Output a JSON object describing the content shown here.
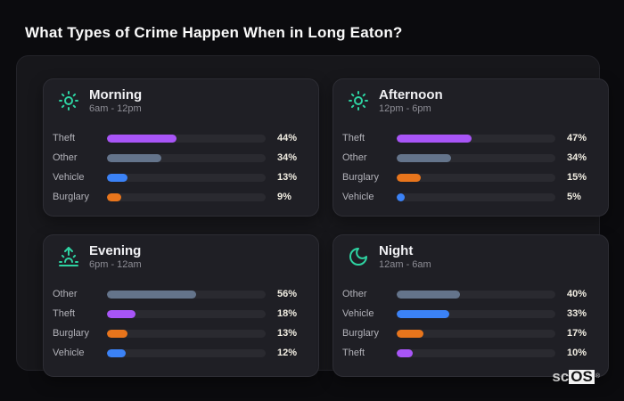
{
  "page": {
    "title": "What Types of Crime Happen When in Long Eaton?"
  },
  "colors": {
    "theft": "#a855f7",
    "other": "#64748b",
    "vehicle": "#3b82f6",
    "burglary": "#e8751c",
    "icon_accent": "#2ed3a2"
  },
  "chart_data": [
    {
      "type": "bar",
      "orientation": "horizontal",
      "title": "Morning",
      "subtitle": "6am - 12pm",
      "icon": "sun-icon",
      "unit": "%",
      "xlim": [
        0,
        100
      ],
      "rows": [
        {
          "label": "Theft",
          "value": 44,
          "display": "44%",
          "color_key": "theft"
        },
        {
          "label": "Other",
          "value": 34,
          "display": "34%",
          "color_key": "other"
        },
        {
          "label": "Vehicle",
          "value": 13,
          "display": "13%",
          "color_key": "vehicle"
        },
        {
          "label": "Burglary",
          "value": 9,
          "display": "9%",
          "color_key": "burglary"
        }
      ]
    },
    {
      "type": "bar",
      "orientation": "horizontal",
      "title": "Afternoon",
      "subtitle": "12pm - 6pm",
      "icon": "sun-icon",
      "unit": "%",
      "xlim": [
        0,
        100
      ],
      "rows": [
        {
          "label": "Theft",
          "value": 47,
          "display": "47%",
          "color_key": "theft"
        },
        {
          "label": "Other",
          "value": 34,
          "display": "34%",
          "color_key": "other"
        },
        {
          "label": "Burglary",
          "value": 15,
          "display": "15%",
          "color_key": "burglary"
        },
        {
          "label": "Vehicle",
          "value": 5,
          "display": "5%",
          "color_key": "vehicle"
        }
      ]
    },
    {
      "type": "bar",
      "orientation": "horizontal",
      "title": "Evening",
      "subtitle": "6pm - 12am",
      "icon": "sunrise-icon",
      "unit": "%",
      "xlim": [
        0,
        100
      ],
      "rows": [
        {
          "label": "Other",
          "value": 56,
          "display": "56%",
          "color_key": "other"
        },
        {
          "label": "Theft",
          "value": 18,
          "display": "18%",
          "color_key": "theft"
        },
        {
          "label": "Burglary",
          "value": 13,
          "display": "13%",
          "color_key": "burglary"
        },
        {
          "label": "Vehicle",
          "value": 12,
          "display": "12%",
          "color_key": "vehicle"
        }
      ]
    },
    {
      "type": "bar",
      "orientation": "horizontal",
      "title": "Night",
      "subtitle": "12am - 6am",
      "icon": "moon-icon",
      "unit": "%",
      "xlim": [
        0,
        100
      ],
      "rows": [
        {
          "label": "Other",
          "value": 40,
          "display": "40%",
          "color_key": "other"
        },
        {
          "label": "Vehicle",
          "value": 33,
          "display": "33%",
          "color_key": "vehicle"
        },
        {
          "label": "Burglary",
          "value": 17,
          "display": "17%",
          "color_key": "burglary"
        },
        {
          "label": "Theft",
          "value": 10,
          "display": "10%",
          "color_key": "theft"
        }
      ]
    }
  ],
  "watermark": {
    "prefix": "sc",
    "suffix": "OS",
    "registered": "®"
  }
}
